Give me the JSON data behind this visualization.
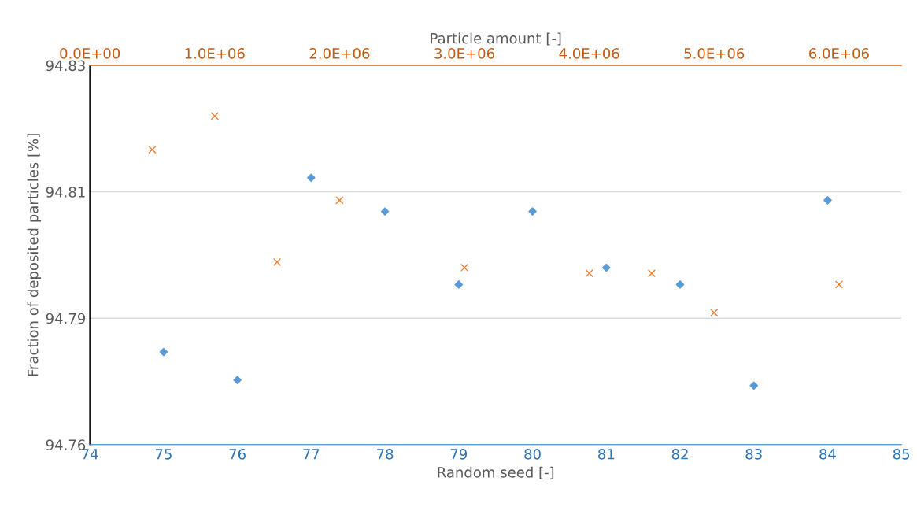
{
  "chart_data": {
    "type": "scatter",
    "xlabel": "Random seed [-]",
    "x2label": "Particle amount [-]",
    "ylabel": "Fraction of deposited particles [%]",
    "xlim": [
      74,
      85
    ],
    "xticks": [
      74,
      75,
      76,
      77,
      78,
      79,
      80,
      81,
      82,
      83,
      84,
      85
    ],
    "x2lim": [
      0,
      6500000
    ],
    "x2ticks": [
      {
        "value": 0,
        "label": "0.0E+00"
      },
      {
        "value": 1000000,
        "label": "1.0E+06"
      },
      {
        "value": 2000000,
        "label": "2.0E+06"
      },
      {
        "value": 3000000,
        "label": "3.0E+06"
      },
      {
        "value": 4000000,
        "label": "4.0E+06"
      },
      {
        "value": 5000000,
        "label": "5.0E+06"
      },
      {
        "value": 6000000,
        "label": "6.0E+06"
      }
    ],
    "ylim": [
      94.7625,
      94.83
    ],
    "yticks": [
      {
        "value": 94.7625,
        "label": "94.76"
      },
      {
        "value": 94.785,
        "label": "94.79"
      },
      {
        "value": 94.8075,
        "label": "94.81"
      },
      {
        "value": 94.83,
        "label": "94.83"
      }
    ],
    "grid": "y",
    "legend": false,
    "series": [
      {
        "color": "#5b9bd5",
        "marker": "diamond",
        "x": [
          75,
          76,
          77,
          78,
          79,
          80,
          81,
          82,
          83,
          84
        ],
        "values": [
          94.779,
          94.774,
          94.81,
          94.804,
          94.791,
          94.804,
          94.794,
          94.791,
          94.773,
          94.806
        ]
      },
      {
        "color": "#ed7d31",
        "marker": "cross",
        "axis": "x2",
        "x": [
          500000,
          1000000,
          1500000,
          2000000,
          3000000,
          4000000,
          4500000,
          5000000,
          6000000
        ],
        "values": [
          94.815,
          94.821,
          94.795,
          94.806,
          94.794,
          94.793,
          94.793,
          94.786,
          94.791
        ]
      }
    ]
  }
}
